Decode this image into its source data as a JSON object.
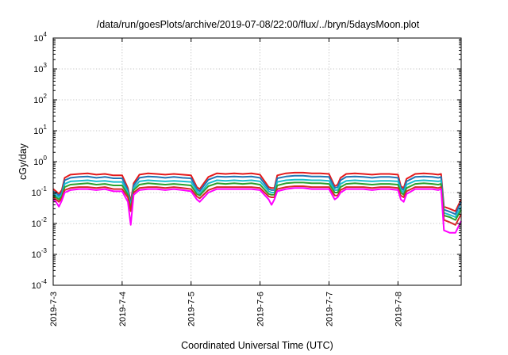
{
  "chart_data": {
    "type": "line",
    "title": "/data/run/goesPlots/archive/2019-07-08/22:00/flux/../bryn/5daysMoon.plot",
    "xlabel": "Coordinated Universal Time (UTC)",
    "ylabel": "cGy/day",
    "yscale": "log",
    "ylim": [
      0.0001,
      10000
    ],
    "xlim": [
      "2019-07-03T00:00",
      "2019-07-08T22:00"
    ],
    "xticks": [
      "2019-7-3",
      "2019-7-4",
      "2019-7-5",
      "2019-7-6",
      "2019-7-7",
      "2019-7-8"
    ],
    "xtick_dates": [
      "2019-07-03T00:00",
      "2019-07-04T00:00",
      "2019-07-05T00:00",
      "2019-07-06T00:00",
      "2019-07-07T00:00",
      "2019-07-08T00:00"
    ],
    "yticks": [
      {
        "base": "10",
        "exp": "-4",
        "value": 0.0001
      },
      {
        "base": "10",
        "exp": "-3",
        "value": 0.001
      },
      {
        "base": "10",
        "exp": "-2",
        "value": 0.01
      },
      {
        "base": "10",
        "exp": "-1",
        "value": 0.1
      },
      {
        "base": "10",
        "exp": "0",
        "value": 1
      },
      {
        "base": "10",
        "exp": "1",
        "value": 10
      },
      {
        "base": "10",
        "exp": "2",
        "value": 100
      },
      {
        "base": "10",
        "exp": "3",
        "value": 1000
      },
      {
        "base": "10",
        "exp": "4",
        "value": 10000
      }
    ],
    "grid": true,
    "x": [
      "2019-07-03T00:00",
      "2019-07-03T01:00",
      "2019-07-03T02:00",
      "2019-07-03T03:00",
      "2019-07-03T04:00",
      "2019-07-03T06:00",
      "2019-07-03T09:00",
      "2019-07-03T12:00",
      "2019-07-03T15:00",
      "2019-07-03T18:00",
      "2019-07-03T21:00",
      "2019-07-04T00:00",
      "2019-07-04T02:00",
      "2019-07-04T03:00",
      "2019-07-04T04:00",
      "2019-07-04T06:00",
      "2019-07-04T09:00",
      "2019-07-04T12:00",
      "2019-07-04T15:00",
      "2019-07-04T18:00",
      "2019-07-04T21:00",
      "2019-07-05T00:00",
      "2019-07-05T02:00",
      "2019-07-05T03:00",
      "2019-07-05T06:00",
      "2019-07-05T09:00",
      "2019-07-05T12:00",
      "2019-07-05T15:00",
      "2019-07-05T18:00",
      "2019-07-05T21:00",
      "2019-07-06T00:00",
      "2019-07-06T03:00",
      "2019-07-06T04:00",
      "2019-07-06T05:00",
      "2019-07-06T06:00",
      "2019-07-06T09:00",
      "2019-07-06T12:00",
      "2019-07-06T15:00",
      "2019-07-06T18:00",
      "2019-07-06T21:00",
      "2019-07-07T00:00",
      "2019-07-07T02:00",
      "2019-07-07T03:00",
      "2019-07-07T04:00",
      "2019-07-07T06:00",
      "2019-07-07T09:00",
      "2019-07-07T12:00",
      "2019-07-07T15:00",
      "2019-07-07T18:00",
      "2019-07-07T21:00",
      "2019-07-08T00:00",
      "2019-07-08T01:00",
      "2019-07-08T02:00",
      "2019-07-08T03:00",
      "2019-07-08T06:00",
      "2019-07-08T09:00",
      "2019-07-08T12:00",
      "2019-07-08T14:00",
      "2019-07-08T15:00",
      "2019-07-08T16:00",
      "2019-07-08T18:00",
      "2019-07-08T20:00",
      "2019-07-08T22:00"
    ],
    "series": [
      {
        "color": "#e41a1c",
        "values": [
          0.13,
          0.11,
          0.09,
          0.12,
          0.3,
          0.38,
          0.4,
          0.42,
          0.38,
          0.4,
          0.36,
          0.36,
          0.14,
          0.05,
          0.2,
          0.38,
          0.42,
          0.4,
          0.38,
          0.4,
          0.38,
          0.36,
          0.15,
          0.13,
          0.32,
          0.42,
          0.4,
          0.42,
          0.4,
          0.42,
          0.38,
          0.15,
          0.14,
          0.14,
          0.36,
          0.42,
          0.44,
          0.44,
          0.42,
          0.42,
          0.4,
          0.16,
          0.18,
          0.3,
          0.4,
          0.42,
          0.4,
          0.38,
          0.4,
          0.4,
          0.38,
          0.16,
          0.14,
          0.28,
          0.4,
          0.42,
          0.4,
          0.38,
          0.4,
          0.035,
          0.03,
          0.025,
          0.06
        ]
      },
      {
        "color": "#1f77b4",
        "values": [
          0.11,
          0.095,
          0.08,
          0.1,
          0.25,
          0.3,
          0.32,
          0.33,
          0.3,
          0.32,
          0.29,
          0.29,
          0.12,
          0.04,
          0.17,
          0.3,
          0.33,
          0.32,
          0.3,
          0.32,
          0.3,
          0.29,
          0.13,
          0.11,
          0.26,
          0.33,
          0.32,
          0.33,
          0.32,
          0.33,
          0.3,
          0.13,
          0.12,
          0.12,
          0.29,
          0.33,
          0.35,
          0.35,
          0.33,
          0.33,
          0.32,
          0.14,
          0.15,
          0.25,
          0.32,
          0.33,
          0.32,
          0.3,
          0.32,
          0.32,
          0.3,
          0.14,
          0.12,
          0.23,
          0.32,
          0.33,
          0.32,
          0.3,
          0.32,
          0.028,
          0.024,
          0.02,
          0.05
        ]
      },
      {
        "color": "#17becf",
        "values": [
          0.09,
          0.08,
          0.07,
          0.085,
          0.19,
          0.23,
          0.24,
          0.25,
          0.23,
          0.24,
          0.22,
          0.22,
          0.1,
          0.035,
          0.14,
          0.23,
          0.25,
          0.24,
          0.23,
          0.24,
          0.23,
          0.22,
          0.11,
          0.09,
          0.2,
          0.25,
          0.24,
          0.25,
          0.24,
          0.25,
          0.23,
          0.11,
          0.1,
          0.1,
          0.22,
          0.25,
          0.26,
          0.26,
          0.25,
          0.25,
          0.24,
          0.12,
          0.12,
          0.19,
          0.24,
          0.25,
          0.24,
          0.23,
          0.24,
          0.24,
          0.23,
          0.12,
          0.1,
          0.18,
          0.24,
          0.25,
          0.24,
          0.23,
          0.24,
          0.022,
          0.019,
          0.016,
          0.035
        ]
      },
      {
        "color": "#2ca02c",
        "values": [
          0.08,
          0.07,
          0.06,
          0.075,
          0.15,
          0.18,
          0.19,
          0.2,
          0.18,
          0.19,
          0.17,
          0.17,
          0.085,
          0.03,
          0.12,
          0.18,
          0.2,
          0.19,
          0.18,
          0.19,
          0.18,
          0.17,
          0.09,
          0.08,
          0.16,
          0.2,
          0.19,
          0.2,
          0.19,
          0.2,
          0.18,
          0.09,
          0.085,
          0.085,
          0.17,
          0.2,
          0.21,
          0.21,
          0.2,
          0.2,
          0.19,
          0.1,
          0.1,
          0.15,
          0.19,
          0.2,
          0.19,
          0.18,
          0.19,
          0.19,
          0.18,
          0.1,
          0.085,
          0.14,
          0.19,
          0.2,
          0.19,
          0.18,
          0.19,
          0.018,
          0.016,
          0.013,
          0.028
        ]
      },
      {
        "color": "#d62728",
        "values": [
          0.07,
          0.06,
          0.05,
          0.065,
          0.12,
          0.14,
          0.15,
          0.15,
          0.14,
          0.15,
          0.13,
          0.13,
          0.07,
          0.025,
          0.1,
          0.14,
          0.15,
          0.15,
          0.14,
          0.15,
          0.14,
          0.13,
          0.075,
          0.065,
          0.12,
          0.15,
          0.15,
          0.15,
          0.15,
          0.15,
          0.14,
          0.075,
          0.07,
          0.07,
          0.13,
          0.15,
          0.16,
          0.16,
          0.15,
          0.15,
          0.15,
          0.08,
          0.08,
          0.12,
          0.15,
          0.15,
          0.15,
          0.14,
          0.15,
          0.15,
          0.14,
          0.08,
          0.07,
          0.11,
          0.15,
          0.15,
          0.15,
          0.14,
          0.15,
          0.013,
          0.011,
          0.009,
          0.02
        ]
      },
      {
        "color": "#ff00ff",
        "values": [
          0.06,
          0.05,
          0.035,
          0.055,
          0.1,
          0.12,
          0.13,
          0.13,
          0.12,
          0.13,
          0.11,
          0.11,
          0.05,
          0.009,
          0.085,
          0.12,
          0.13,
          0.13,
          0.12,
          0.13,
          0.12,
          0.11,
          0.06,
          0.05,
          0.1,
          0.13,
          0.13,
          0.13,
          0.13,
          0.13,
          0.12,
          0.06,
          0.04,
          0.06,
          0.11,
          0.13,
          0.14,
          0.14,
          0.13,
          0.13,
          0.13,
          0.06,
          0.07,
          0.1,
          0.13,
          0.13,
          0.13,
          0.12,
          0.13,
          0.13,
          0.12,
          0.06,
          0.05,
          0.09,
          0.13,
          0.13,
          0.13,
          0.12,
          0.13,
          0.006,
          0.005,
          0.005,
          0.012
        ]
      }
    ]
  }
}
